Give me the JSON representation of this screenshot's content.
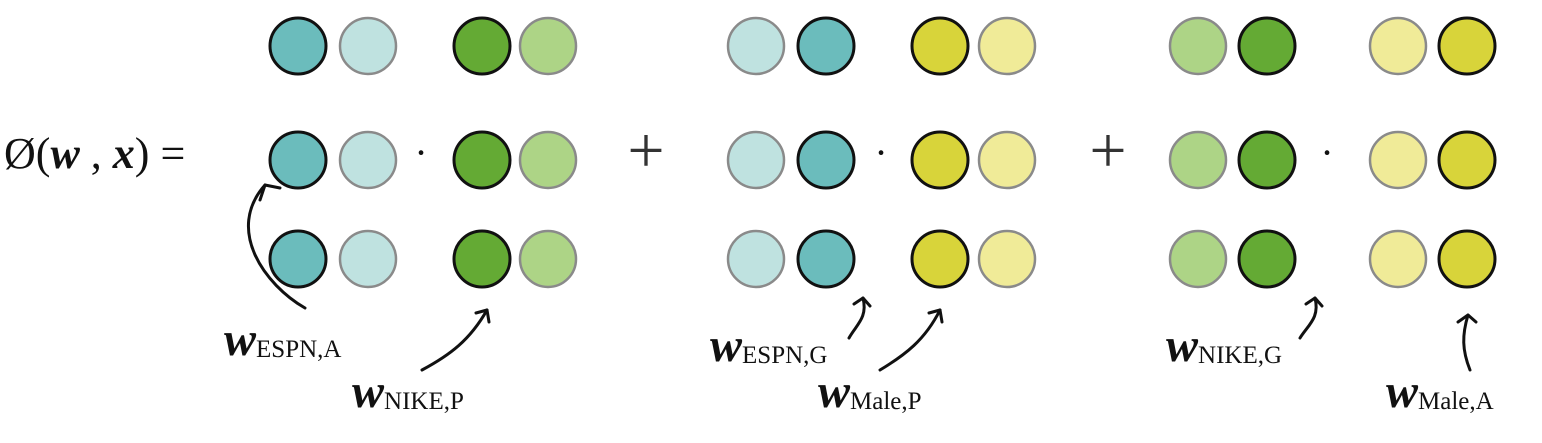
{
  "formula": {
    "phi": "Ø",
    "open": "(",
    "w": "w",
    "comma": " , ",
    "x": "x",
    "close": ")",
    "equals": " ="
  },
  "operators": {
    "dot": "·",
    "plus": "+"
  },
  "labels": [
    {
      "w": "w",
      "sub": "ESPN,A"
    },
    {
      "w": "w",
      "sub": "NIKE,P"
    },
    {
      "w": "w",
      "sub": "ESPN,G"
    },
    {
      "w": "w",
      "sub": "Male,P"
    },
    {
      "w": "w",
      "sub": "NIKE,G"
    },
    {
      "w": "w",
      "sub": "Male,A"
    }
  ],
  "colors": {
    "teal": "#6bbcbc",
    "teal_light": "#bfe2e0",
    "green": "#64aa34",
    "green_light": "#add486",
    "yellow": "#d8d43a",
    "yellow_light": "#f0eb98",
    "outline_dark": "#111111",
    "outline_light": "#8a8a8a"
  }
}
